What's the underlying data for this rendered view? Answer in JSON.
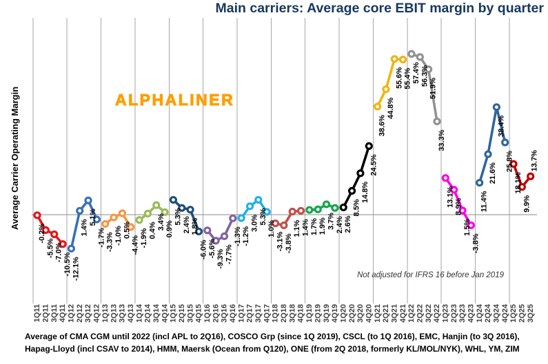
{
  "title": "Main carriers: Average core EBIT margin by quarter",
  "ylabel": "Average Carrier Operating Margin",
  "watermark": "ALPHALINER",
  "note": "Not adjusted for IFRS 16 before Jan 2019",
  "footer": {
    "line1": "Average of CMA CGM until 2022 (incl APL to 2Q16), COSCO Grp (since 1Q 2019), CSCL (to 1Q 2016), EMC, Hanjin (to 3Q 2016),",
    "line2": "Hapag-Lloyd (incl CSAV to 2014), HMM, Maersk (Ocean from Q120), ONE (from 2Q 2018, formerly KL/MOL/NYK), WHL, YM, ZIM"
  },
  "chart_data": {
    "type": "line",
    "title": "Main carriers: Average core EBIT margin by quarter",
    "xlabel": "",
    "ylabel": "Average Carrier Operating Margin",
    "ylim": [
      -30,
      70
    ],
    "grid": "vertical-year-boundaries",
    "legend": "none",
    "label_format": "one-decimal-percent",
    "categories": [
      "1Q11",
      "2Q11",
      "3Q11",
      "4Q11",
      "1Q12",
      "2Q12",
      "3Q12",
      "4Q12",
      "1Q13",
      "2Q13",
      "3Q13",
      "4Q13",
      "1Q14",
      "2Q14",
      "3Q14",
      "4Q14",
      "1Q15",
      "2Q15",
      "3Q15",
      "4Q15",
      "1Q16",
      "2Q16",
      "3Q16",
      "4Q16",
      "1Q17",
      "2Q17",
      "3Q17",
      "4Q17",
      "1Q18",
      "2Q18",
      "3Q18",
      "4Q18",
      "1Q19",
      "2Q19",
      "3Q19",
      "4Q19",
      "1Q20",
      "2Q20",
      "3Q20",
      "4Q20",
      "1Q21",
      "2Q21",
      "3Q21",
      "4Q21",
      "1Q22",
      "2Q22",
      "3Q22",
      "4Q22",
      "1Q23",
      "2Q23",
      "3Q23",
      "4Q23",
      "1Q24",
      "2Q24",
      "3Q24",
      "4Q24",
      "1Q25",
      "2Q25",
      "3Q25"
    ],
    "series": [
      {
        "name": "2011",
        "color": "#DF1A1E",
        "values": [
          -0.2,
          -5.5,
          -7.0,
          -10.5
        ]
      },
      {
        "name": "2012",
        "color": "#3A70B8",
        "values": [
          -12.1,
          1.4,
          5.1,
          -1.7
        ]
      },
      {
        "name": "2013",
        "color": "#F79646",
        "values": [
          -3.3,
          -1.0,
          0.5,
          -4.4
        ]
      },
      {
        "name": "2014",
        "color": "#9BBB59",
        "values": [
          -1.9,
          0.4,
          3.4,
          0.9
        ]
      },
      {
        "name": "2015",
        "color": "#1F4E79",
        "values": [
          5.3,
          2.4,
          1.8,
          -6.0
        ]
      },
      {
        "name": "2016",
        "color": "#8064A2",
        "values": [
          -5.6,
          -9.3,
          -7.7,
          -1.3
        ]
      },
      {
        "name": "2017",
        "color": "#22B0E6",
        "values": [
          -1.2,
          3.0,
          5.3,
          1.0
        ]
      },
      {
        "name": "2018",
        "color": "#C0504D",
        "values": [
          -3.1,
          -3.8,
          1.1,
          1.4
        ]
      },
      {
        "name": "2019",
        "color": "#17A54D",
        "values": [
          1.7,
          1.9,
          3.7,
          2.4
        ]
      },
      {
        "name": "2020",
        "color": "#000000",
        "values": [
          2.6,
          8.5,
          14.8,
          24.5
        ]
      },
      {
        "name": "2021",
        "color": "#F0B510",
        "values": [
          38.6,
          44.8,
          55.6,
          55.4
        ]
      },
      {
        "name": "2022",
        "color": "#929292",
        "values": [
          57.4,
          56.3,
          51.9,
          33.3
        ]
      },
      {
        "name": "2023",
        "color": "#FF00E6",
        "values": [
          13.1,
          8.9,
          1.5,
          -3.8
        ]
      },
      {
        "name": "2024",
        "color": "#30659B",
        "values": [
          11.4,
          21.6,
          38.4,
          25.8
        ]
      },
      {
        "name": "2025",
        "color": "#C00000",
        "values": [
          18.1,
          9.9,
          13.7
        ]
      }
    ]
  }
}
